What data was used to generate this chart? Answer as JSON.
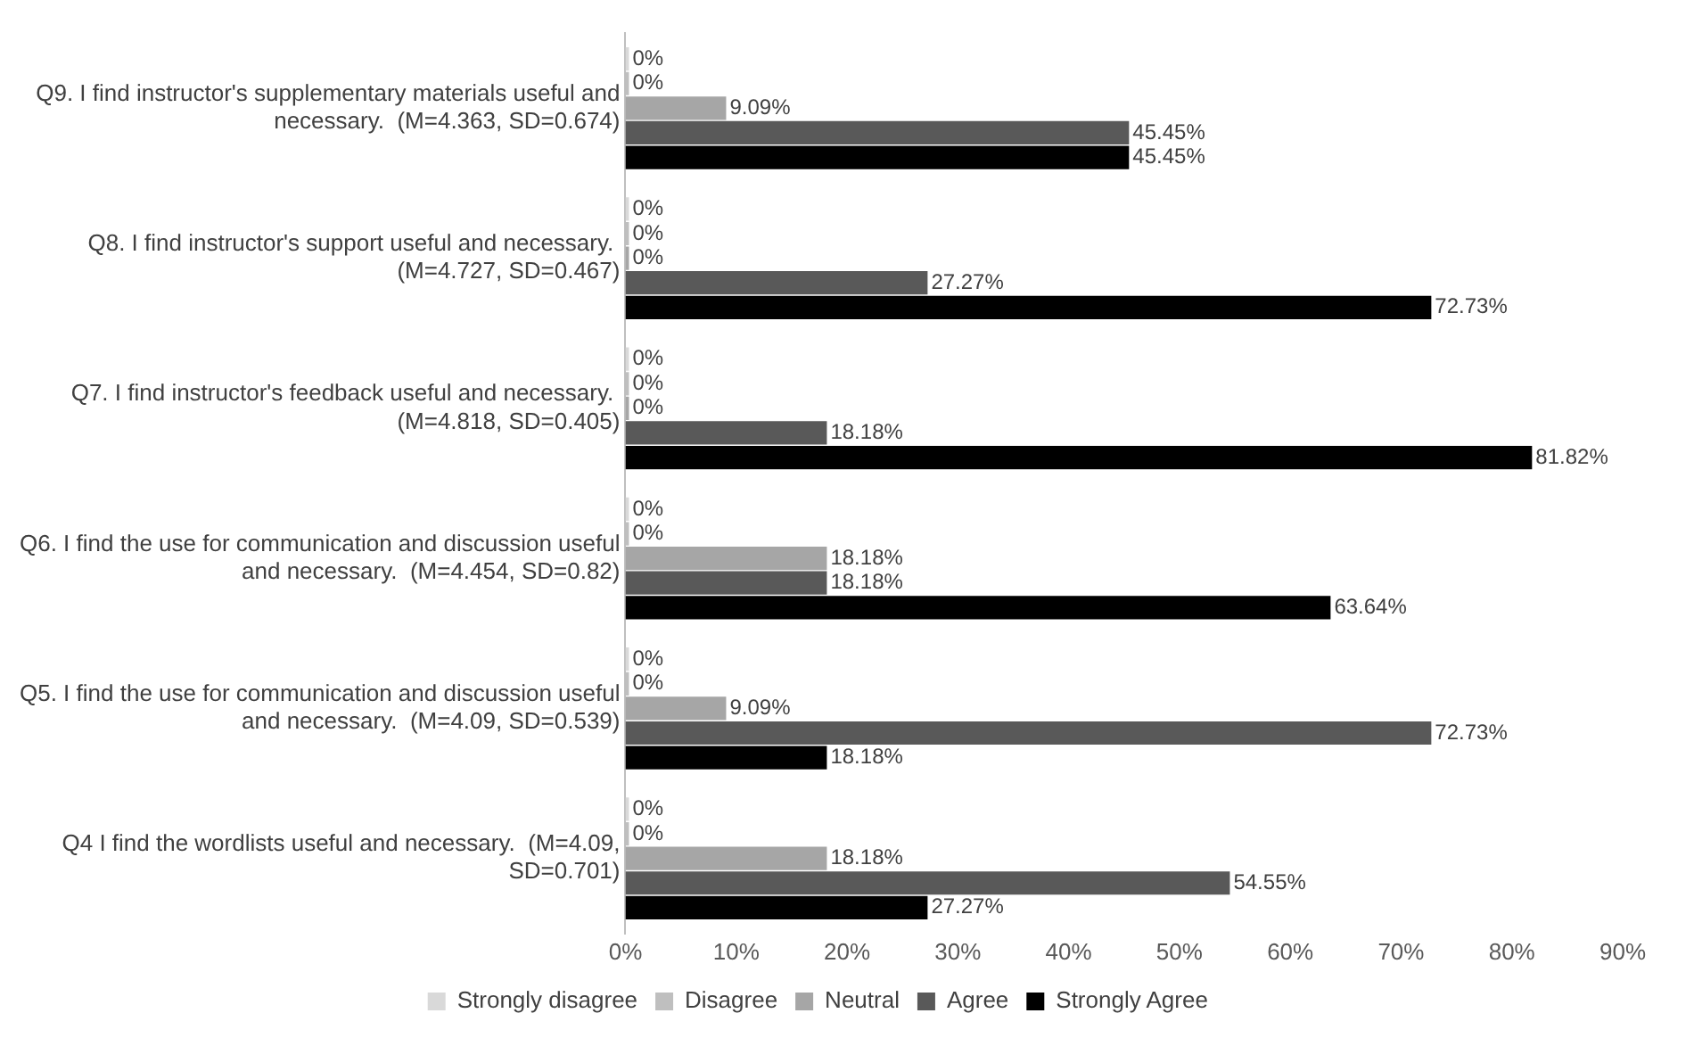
{
  "chart_data": {
    "type": "bar",
    "orientation": "horizontal",
    "categories": [
      "Q9. I find instructor's supplementary materials useful and necessary.  (M=4.363, SD=0.674)",
      "Q8. I find instructor's support useful and necessary.  (M=4.727, SD=0.467)",
      "Q7. I find instructor's feedback useful and necessary.  (M=4.818, SD=0.405)",
      "Q6. I find the use for communication and discussion useful and necessary.  (M=4.454, SD=0.82)",
      "Q5. I find the use for communication and discussion useful and necessary.  (M=4.09, SD=0.539)",
      "Q4 I find the wordlists useful and necessary.  (M=4.09, SD=0.701)"
    ],
    "series": [
      {
        "name": "Strongly disagree",
        "color": "#d9d9d9",
        "values": [
          0,
          0,
          0,
          0,
          0,
          0
        ],
        "value_labels": [
          "0%",
          "0%",
          "0%",
          "0%",
          "0%",
          "0%"
        ]
      },
      {
        "name": "Disagree",
        "color": "#bfbfbf",
        "values": [
          0,
          0,
          0,
          0,
          0,
          0
        ],
        "value_labels": [
          "0%",
          "0%",
          "0%",
          "0%",
          "0%",
          "0%"
        ]
      },
      {
        "name": "Neutral",
        "color": "#a6a6a6",
        "values": [
          9.09,
          0,
          0,
          18.18,
          9.09,
          18.18
        ],
        "value_labels": [
          "9.09%",
          "0%",
          "0%",
          "18.18%",
          "9.09%",
          "18.18%"
        ]
      },
      {
        "name": "Agree",
        "color": "#595959",
        "values": [
          45.45,
          27.27,
          18.18,
          18.18,
          72.73,
          54.55
        ],
        "value_labels": [
          "45.45%",
          "27.27%",
          "18.18%",
          "18.18%",
          "72.73%",
          "54.55%"
        ]
      },
      {
        "name": "Strongly Agree",
        "color": "#000000",
        "values": [
          45.45,
          72.73,
          81.82,
          63.64,
          18.18,
          27.27
        ],
        "value_labels": [
          "45.45%",
          "72.73%",
          "81.82%",
          "63.64%",
          "18.18%",
          "27.27%"
        ]
      }
    ],
    "xlim": [
      0,
      90
    ],
    "xticks": [
      {
        "value": 0,
        "label": "0%"
      },
      {
        "value": 10,
        "label": "10%"
      },
      {
        "value": 20,
        "label": "20%"
      },
      {
        "value": 30,
        "label": "30%"
      },
      {
        "value": 40,
        "label": "40%"
      },
      {
        "value": 50,
        "label": "50%"
      },
      {
        "value": 60,
        "label": "60%"
      },
      {
        "value": 70,
        "label": "70%"
      },
      {
        "value": 80,
        "label": "80%"
      },
      {
        "value": 90,
        "label": "90%"
      }
    ],
    "grid": false,
    "legend": "bottom"
  }
}
